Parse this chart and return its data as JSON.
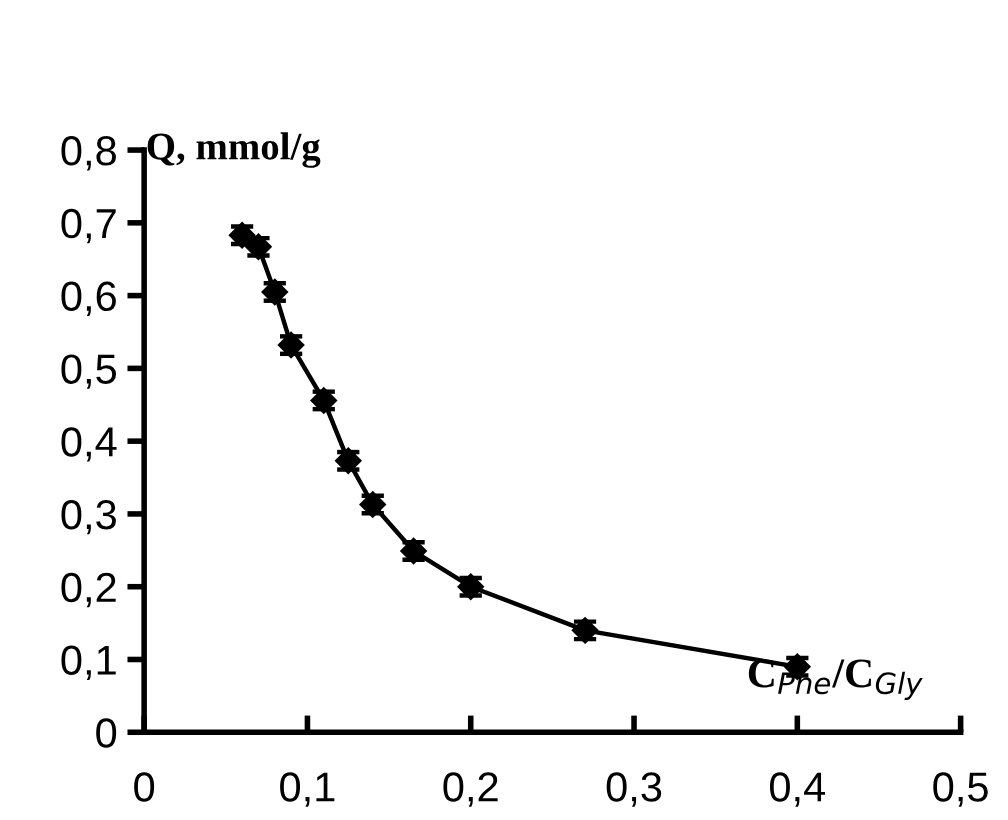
{
  "chart_data": {
    "type": "line",
    "xlabel": "C$_{Phe}$/C$_{Gly}$",
    "ylabel": "Q, mmol/g",
    "x": [
      0.06,
      0.07,
      0.08,
      0.09,
      0.11,
      0.125,
      0.14,
      0.165,
      0.2,
      0.27,
      0.4
    ],
    "series": [
      {
        "color": "#000000",
        "values": [
          0.683,
          0.667,
          0.605,
          0.532,
          0.456,
          0.373,
          0.313,
          0.249,
          0.2,
          0.14,
          0.09
        ],
        "errors": [
          0.012,
          0.012,
          0.012,
          0.012,
          0.012,
          0.012,
          0.012,
          0.012,
          0.012,
          0.012,
          0.012
        ]
      }
    ],
    "marker": "diamond",
    "line_style": "solid",
    "grid": false,
    "xlim": [
      0,
      0.5
    ],
    "ylim": [
      0,
      0.8
    ],
    "xticks": [
      0,
      {
        "value": 0.1,
        "label": "0,1"
      },
      {
        "value": 0.2,
        "label": "0,2"
      },
      {
        "value": 0.3,
        "label": "0,3"
      },
      {
        "value": 0.4,
        "label": "0,4"
      },
      {
        "value": 0.5,
        "label": "0,5"
      }
    ],
    "yticks": [
      0,
      {
        "value": 0.1,
        "label": "0,1"
      },
      {
        "value": 0.2,
        "label": "0,2"
      },
      {
        "value": 0.3,
        "label": "0,3"
      },
      {
        "value": 0.4,
        "label": "0,4"
      },
      {
        "value": 0.5,
        "label": "0,5"
      },
      {
        "value": 0.6,
        "label": "0,6"
      },
      {
        "value": 0.7,
        "label": "0,7"
      },
      {
        "value": 0.8,
        "label": "0,8"
      }
    ]
  }
}
